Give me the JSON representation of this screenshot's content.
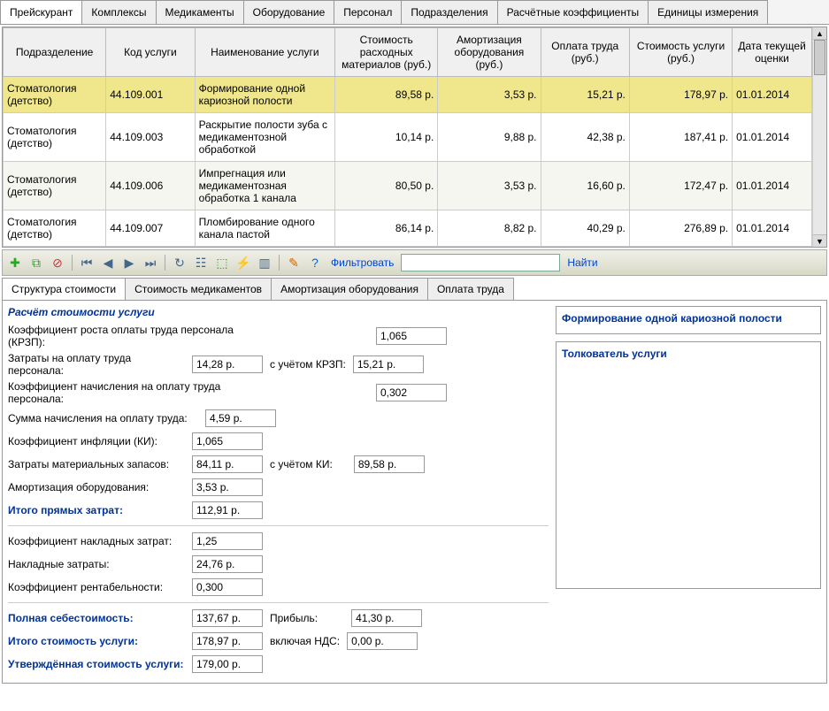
{
  "mainTabs": [
    "Прейскурант",
    "Комплексы",
    "Медикаменты",
    "Оборудование",
    "Персонал",
    "Подразделения",
    "Расчётные коэффициенты",
    "Единицы измерения"
  ],
  "mainTabActive": 0,
  "gridHeaders": [
    "Подразделение",
    "Код услуги",
    "Наименование услуги",
    "Стоимость расходных материалов (руб.)",
    "Амортизация оборудования (руб.)",
    "Оплата труда (руб.)",
    "Стоимость услуги (руб.)",
    "Дата текущей оценки"
  ],
  "gridRows": [
    {
      "dept": "Стоматология (детство)",
      "code": "44.109.001",
      "name": "Формирование одной кариозной полости",
      "mat": "89,58 р.",
      "amort": "3,53 р.",
      "labor": "15,21 р.",
      "cost": "178,97 р.",
      "date": "01.01.2014",
      "sel": true
    },
    {
      "dept": "Стоматология (детство)",
      "code": "44.109.003",
      "name": "Раскрытие полости зуба с медикаментозной обработкой",
      "mat": "10,14 р.",
      "amort": "9,88 р.",
      "labor": "42,38 р.",
      "cost": "187,41 р.",
      "date": "01.01.2014"
    },
    {
      "dept": "Стоматология (детство)",
      "code": "44.109.006",
      "name": "Импрегнация или медикаментозная обработка 1 канала",
      "mat": "80,50 р.",
      "amort": "3,53 р.",
      "labor": "16,60 р.",
      "cost": "172,47 р.",
      "date": "01.01.2014",
      "alt": true
    },
    {
      "dept": "Стоматология (детство)",
      "code": "44.109.007",
      "name": "Пломбирование одного канала пастой",
      "mat": "86,14 р.",
      "amort": "8,82 р.",
      "labor": "40,29 р.",
      "cost": "276,89 р.",
      "date": "01.01.2014"
    }
  ],
  "toolbar": {
    "filterLabel": "Фильтровать",
    "findLabel": "Найти",
    "filterValue": ""
  },
  "toolbarIcons": [
    {
      "name": "add-icon",
      "glyph": "✚",
      "color": "#2a2"
    },
    {
      "name": "copy-icon",
      "glyph": "⧉",
      "color": "#2a2"
    },
    {
      "name": "delete-icon",
      "glyph": "⊘",
      "color": "#c33"
    },
    {
      "sep": true
    },
    {
      "name": "first-icon",
      "glyph": "⏮",
      "color": "#468"
    },
    {
      "name": "prev-icon",
      "glyph": "◀",
      "color": "#468"
    },
    {
      "name": "next-icon",
      "glyph": "▶",
      "color": "#468"
    },
    {
      "name": "last-icon",
      "glyph": "⏭",
      "color": "#468"
    },
    {
      "sep": true
    },
    {
      "name": "refresh-icon",
      "glyph": "↻",
      "color": "#468"
    },
    {
      "name": "tree-icon",
      "glyph": "☷",
      "color": "#468"
    },
    {
      "name": "export-icon",
      "glyph": "⬚",
      "color": "#2a2"
    },
    {
      "name": "chart-icon",
      "glyph": "⚡",
      "color": "#cc0"
    },
    {
      "name": "report-icon",
      "glyph": "▥",
      "color": "#468"
    },
    {
      "sep": true
    },
    {
      "name": "tool-icon",
      "glyph": "✎",
      "color": "#c60"
    },
    {
      "name": "help-icon",
      "glyph": "?",
      "color": "#06c"
    }
  ],
  "subTabs": [
    "Структура стоимости",
    "Стоимость медикаментов",
    "Амортизация оборудования",
    "Оплата труда"
  ],
  "subTabActive": 0,
  "detail": {
    "sectionTitle": "Расчёт стоимости услуги",
    "krzpLabel": "Коэффициент роста оплаты труда персонала (КРЗП):",
    "krzpValue": "1,065",
    "laborCostLabel": "Затраты на оплату труда персонала:",
    "laborCostValue": "14,28 р.",
    "withKrzpLabel": "с учётом КРЗП:",
    "withKrzpValue": "15,21 р.",
    "accrualCoefLabel": "Коэффициент начисления на оплату труда персонала:",
    "accrualCoefValue": "0,302",
    "accrualSumLabel": "Сумма начисления на оплату труда:",
    "accrualSumValue": "4,59 р.",
    "kiLabel": "Коэффициент инфляции (КИ):",
    "kiValue": "1,065",
    "matCostLabel": "Затраты материальных запасов:",
    "matCostValue": "84,11 р.",
    "withKiLabel": "с учётом КИ:",
    "withKiValue": "89,58 р.",
    "amortLabel": "Амортизация оборудования:",
    "amortValue": "3,53 р.",
    "directTotalLabel": "Итого прямых затрат:",
    "directTotalValue": "112,91 р.",
    "overheadCoefLabel": "Коэффициент накладных затрат:",
    "overheadCoefValue": "1,25",
    "overheadLabel": "Накладные затраты:",
    "overheadValue": "24,76 р.",
    "profitCoefLabel": "Коэффициент рентабельности:",
    "profitCoefValue": "0,300",
    "fullCostLabel": "Полная себестоимость:",
    "fullCostValue": "137,67 р.",
    "profitLabel": "Прибыль:",
    "profitValue": "41,30 р.",
    "serviceTotalLabel": "Итого стоимость услуги:",
    "serviceTotalValue": "178,97 р.",
    "vatLabel": "включая НДС:",
    "vatValue": "0,00 р.",
    "approvedLabel": "Утверждённая стоимость услуги:",
    "approvedValue": "179,00 р."
  },
  "rightPanel": {
    "serviceName": "Формирование одной кариозной полости",
    "glossaryTitle": "Толкователь услуги"
  },
  "colWidths": [
    "110",
    "95",
    "150",
    "110",
    "110",
    "95",
    "110",
    "85"
  ]
}
